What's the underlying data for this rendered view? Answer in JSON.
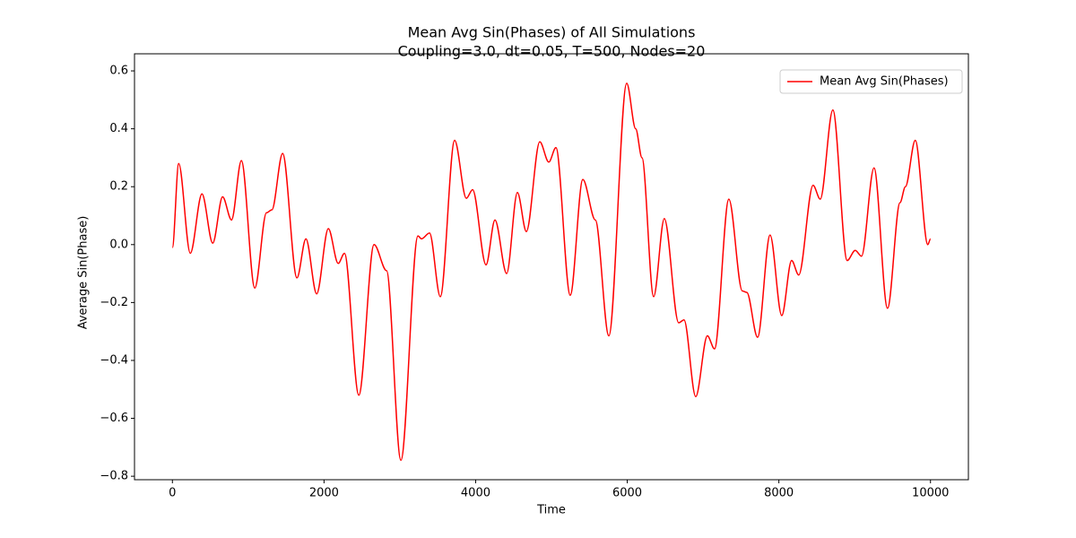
{
  "chart_data": {
    "type": "line",
    "title": "Mean Avg Sin(Phases) of All Simulations",
    "subtitle": "Coupling=3.0, dt=0.05, T=500, Nodes=20",
    "x_label": "Time",
    "y_label": "Average Sin(Phase)",
    "legend": "upper right",
    "xlim": [
      -500,
      10500
    ],
    "ylim": [
      -0.812,
      0.659
    ],
    "xticks": [
      0,
      2000,
      4000,
      6000,
      8000,
      10000
    ],
    "yticks": [
      {
        "value": -0.8,
        "label": "−0.8"
      },
      {
        "value": -0.6,
        "label": "−0.6"
      },
      {
        "value": -0.4,
        "label": "−0.4"
      },
      {
        "value": -0.2,
        "label": "−0.2"
      },
      {
        "value": 0,
        "label": "0.0"
      },
      0.2,
      0.4,
      0.6
    ],
    "series": [
      {
        "name": "Mean Avg Sin(Phases)",
        "color": "#ff0000",
        "x": [
          0,
          83,
          236,
          390,
          532,
          662,
          780,
          910,
          1087,
          1241,
          1312,
          1454,
          1643,
          1761,
          1903,
          2057,
          2187,
          2270,
          2459,
          2660,
          2825,
          3014,
          3239,
          3286,
          3392,
          3534,
          3723,
          3877,
          3960,
          4137,
          4255,
          4409,
          4551,
          4669,
          4846,
          4965,
          5059,
          5248,
          5414,
          5579,
          5757,
          5993,
          6111,
          6194,
          6348,
          6489,
          6678,
          6749,
          6903,
          7057,
          7151,
          7340,
          7518,
          7577,
          7719,
          7884,
          8038,
          8168,
          8262,
          8451,
          8546,
          8712,
          8901,
          9007,
          9090,
          9255,
          9433,
          9598,
          9669,
          9799,
          9965,
          10000
        ],
        "values": [
          -0.01,
          0.28,
          -0.03,
          0.175,
          0.005,
          0.165,
          0.085,
          0.29,
          -0.15,
          0.11,
          0.12,
          0.315,
          -0.115,
          0.02,
          -0.17,
          0.055,
          -0.065,
          -0.03,
          -0.52,
          0.0,
          -0.09,
          -0.745,
          0.03,
          0.02,
          0.04,
          -0.18,
          0.36,
          0.16,
          0.19,
          -0.07,
          0.085,
          -0.1,
          0.18,
          0.045,
          0.355,
          0.285,
          0.335,
          -0.175,
          0.225,
          0.085,
          -0.315,
          0.557,
          0.4,
          0.3,
          -0.18,
          0.09,
          -0.27,
          -0.26,
          -0.525,
          -0.315,
          -0.36,
          0.157,
          -0.16,
          -0.165,
          -0.32,
          0.033,
          -0.245,
          -0.055,
          -0.105,
          0.205,
          0.157,
          0.465,
          -0.055,
          -0.02,
          -0.04,
          0.265,
          -0.22,
          0.145,
          0.2,
          0.36,
          0.0,
          0.02
        ]
      }
    ]
  }
}
